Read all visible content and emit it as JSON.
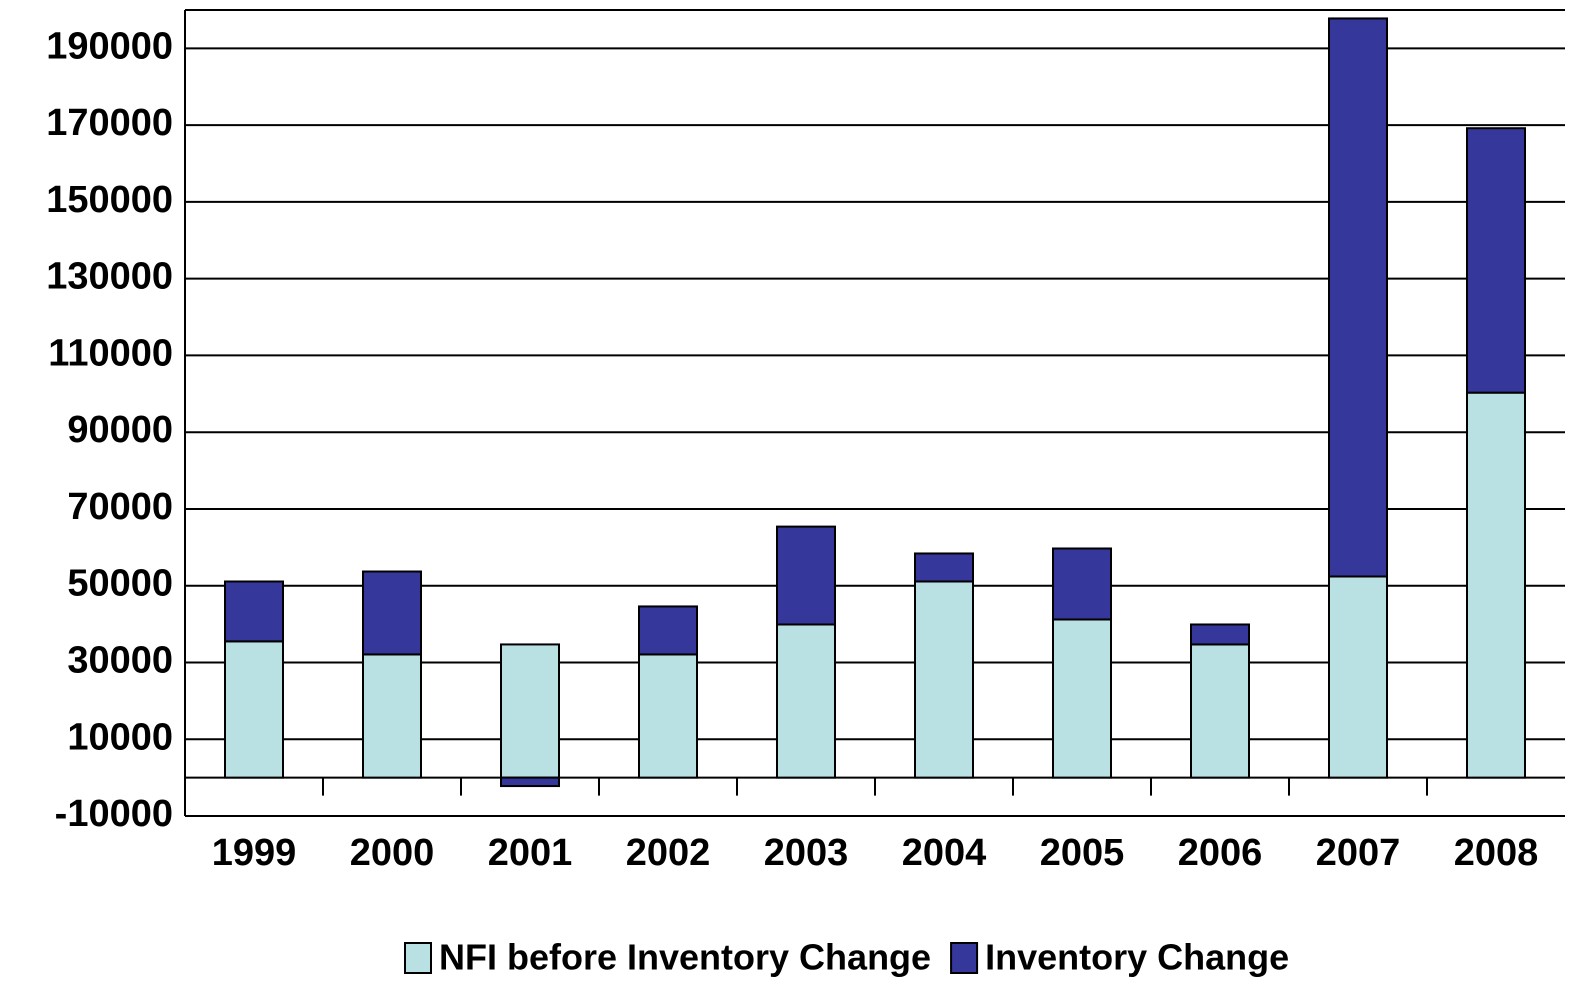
{
  "chart_data": {
    "type": "stacked_bar",
    "categories": [
      "1999",
      "2000",
      "2001",
      "2002",
      "2003",
      "2004",
      "2005",
      "2006",
      "2007",
      "2008"
    ],
    "series": [
      {
        "name": "NFI before Inventory Change",
        "color": "#b9e0e3",
        "values": [
          35500,
          32100,
          34700,
          32100,
          39900,
          51100,
          41200,
          34700,
          52400,
          100300
        ]
      },
      {
        "name": "Inventory Change",
        "color": "#35379a",
        "values": [
          15600,
          21600,
          -2200,
          12500,
          25500,
          7300,
          18500,
          5200,
          145400,
          68900
        ]
      }
    ],
    "ylim": [
      -10000,
      200000
    ],
    "yticks": [
      -10000,
      10000,
      30000,
      50000,
      70000,
      90000,
      110000,
      130000,
      150000,
      170000,
      190000
    ],
    "grid": true,
    "legend": "bottom"
  }
}
